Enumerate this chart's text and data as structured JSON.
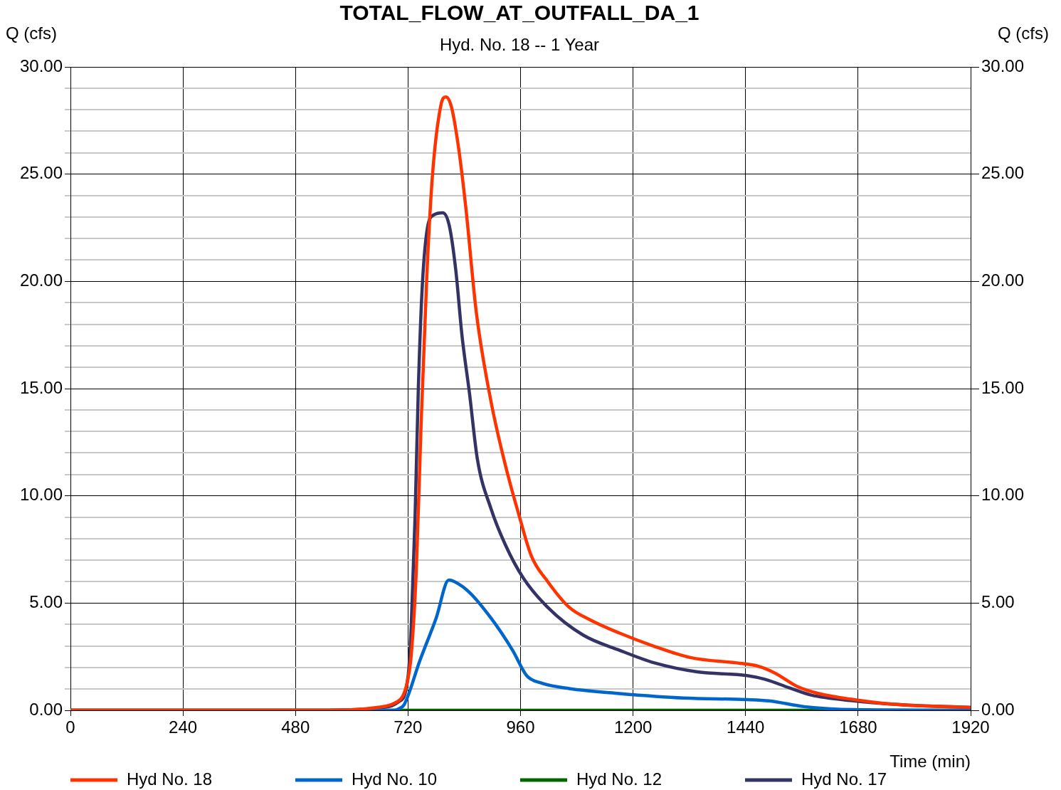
{
  "chart_data": {
    "type": "line",
    "title": "TOTAL_FLOW_AT_OUTFALL_DA_1",
    "subtitle": "Hyd. No. 18 -- 1 Year",
    "xlabel": "Time (min)",
    "ylabel": "Q (cfs)",
    "y2label": "Q (cfs)",
    "xlim": [
      0,
      1920
    ],
    "xticks": [
      0,
      240,
      480,
      720,
      960,
      1200,
      1440,
      1680,
      1920
    ],
    "ylim": [
      0,
      30
    ],
    "yticks": [
      {
        "value": 0,
        "label": "0.00"
      },
      {
        "value": 1,
        "label": null
      },
      {
        "value": 2,
        "label": null
      },
      {
        "value": 3,
        "label": null
      },
      {
        "value": 4,
        "label": null
      },
      {
        "value": 5,
        "label": "5.00"
      },
      {
        "value": 6,
        "label": null
      },
      {
        "value": 7,
        "label": null
      },
      {
        "value": 8,
        "label": null
      },
      {
        "value": 9,
        "label": null
      },
      {
        "value": 10,
        "label": "10.00"
      },
      {
        "value": 11,
        "label": null
      },
      {
        "value": 12,
        "label": null
      },
      {
        "value": 13,
        "label": null
      },
      {
        "value": 14,
        "label": null
      },
      {
        "value": 15,
        "label": "15.00"
      },
      {
        "value": 16,
        "label": null
      },
      {
        "value": 17,
        "label": null
      },
      {
        "value": 18,
        "label": null
      },
      {
        "value": 19,
        "label": null
      },
      {
        "value": 20,
        "label": "20.00"
      },
      {
        "value": 21,
        "label": null
      },
      {
        "value": 22,
        "label": null
      },
      {
        "value": 23,
        "label": null
      },
      {
        "value": 24,
        "label": null
      },
      {
        "value": 25,
        "label": "25.00"
      },
      {
        "value": 26,
        "label": null
      },
      {
        "value": 27,
        "label": null
      },
      {
        "value": 28,
        "label": null
      },
      {
        "value": 29,
        "label": null
      },
      {
        "value": 30,
        "label": "30.00"
      }
    ],
    "y2lim": [
      0,
      30
    ],
    "y2ticks": [
      {
        "value": 0,
        "label": "0.00"
      },
      {
        "value": 5,
        "label": "5.00"
      },
      {
        "value": 10,
        "label": "10.00"
      },
      {
        "value": 15,
        "label": "15.00"
      },
      {
        "value": 20,
        "label": "20.00"
      },
      {
        "value": 25,
        "label": "25.00"
      },
      {
        "value": 30,
        "label": "30.00"
      }
    ],
    "grid": true,
    "legend": "bottom",
    "marker": "none",
    "line_style": "solid",
    "series": [
      {
        "name": "Hyd No. 18",
        "color": "#ff3300",
        "x": [
          0,
          548,
          654,
          692,
          709,
          718,
          727,
          738,
          748,
          760,
          772,
          790,
          801,
          813,
          828,
          843,
          866,
          897,
          928,
          958,
          983,
          1018,
          1064,
          1110,
          1171,
          1247,
          1322,
          1428,
          1466,
          1504,
          1550,
          1596,
          1671,
          1762,
          1920
        ],
        "values": [
          0,
          0,
          0.13,
          0.34,
          0.67,
          1.28,
          2.6,
          6.7,
          13.4,
          20.2,
          24.9,
          28.2,
          28.6,
          28.1,
          26.2,
          23.5,
          18.5,
          14.4,
          11.4,
          9.0,
          7.2,
          6.0,
          4.8,
          4.2,
          3.6,
          2.97,
          2.46,
          2.19,
          2.06,
          1.72,
          1.11,
          0.78,
          0.5,
          0.27,
          0.13
        ]
      },
      {
        "name": "Hyd No. 10",
        "color": "#0066cc",
        "x": [
          0,
          690,
          700,
          712,
          745,
          780,
          807,
          819,
          851,
          897,
          943,
          973,
          1003,
          1064,
          1171,
          1308,
          1443,
          1490,
          1565,
          1671,
          1920
        ],
        "values": [
          0,
          0,
          0.07,
          0.27,
          2.3,
          4.3,
          6.07,
          6.0,
          5.5,
          4.3,
          2.8,
          1.62,
          1.28,
          1.01,
          0.78,
          0.57,
          0.5,
          0.44,
          0.17,
          0.03,
          0
        ]
      },
      {
        "name": "Hyd No. 12",
        "color": "#006600",
        "x": [
          0,
          1920
        ],
        "values": [
          0,
          0
        ]
      },
      {
        "name": "Hyd No. 17",
        "color": "#333366",
        "x": [
          0,
          548,
          650,
          700,
          715,
          722,
          727,
          735,
          742,
          750,
          760,
          775,
          794,
          808,
          822,
          835,
          851,
          868,
          897,
          928,
          965,
          1018,
          1094,
          1171,
          1247,
          1337,
          1443,
          1481,
          1534,
          1580,
          1671,
          1762,
          1920
        ],
        "values": [
          0,
          0,
          0.1,
          0.4,
          0.9,
          2.0,
          4.0,
          9.0,
          15.0,
          19.6,
          22.3,
          23.1,
          23.2,
          22.6,
          20.5,
          17.5,
          14.8,
          11.7,
          9.4,
          7.7,
          6.2,
          4.8,
          3.5,
          2.8,
          2.2,
          1.79,
          1.62,
          1.45,
          1.04,
          0.71,
          0.44,
          0.27,
          0.13
        ]
      }
    ]
  }
}
